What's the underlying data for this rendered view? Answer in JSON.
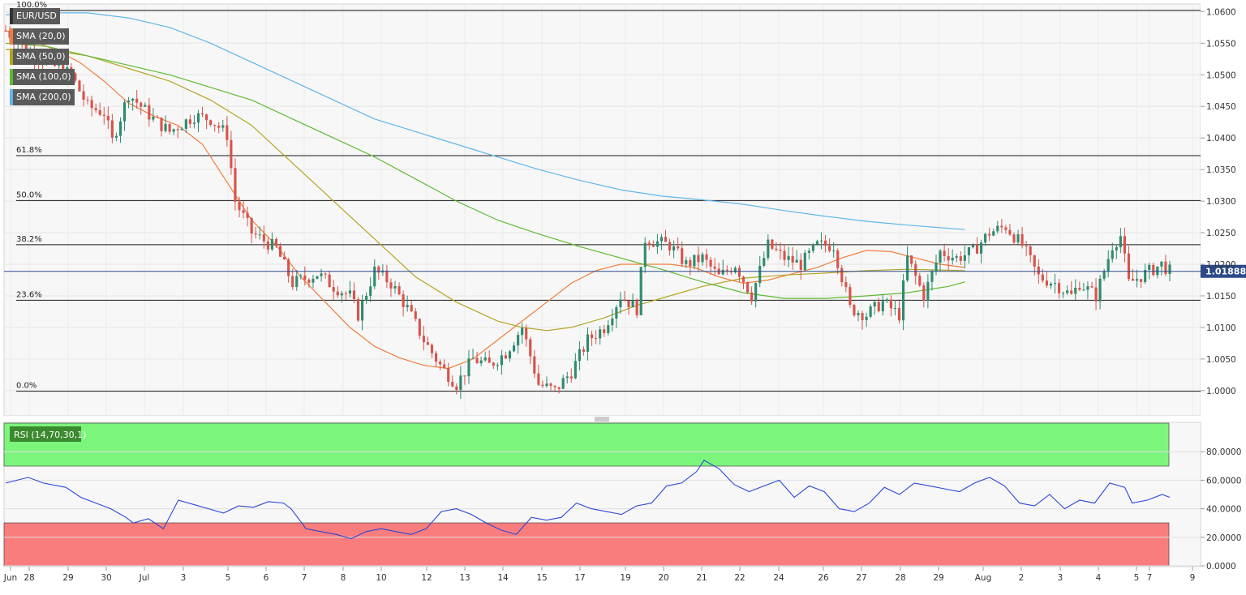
{
  "chart_data": [
    {
      "type": "candlestick",
      "symbol": "EUR/USD",
      "ylim": [
        0.996,
        1.0612
      ],
      "y_ticks": [
        "1.0600",
        "1.0550",
        "1.0500",
        "1.0450",
        "1.0400",
        "1.0350",
        "1.0300",
        "1.0250",
        "1.0200",
        "1.0150",
        "1.0100",
        "1.0050",
        "1.0000"
      ],
      "last_price": "1.01888",
      "last_value": 1.01888,
      "x_labels": [
        "Jun",
        "28",
        "29",
        "30",
        "Jul",
        "3",
        "5",
        "6",
        "7",
        "8",
        "10",
        "12",
        "13",
        "14",
        "15",
        "17",
        "19",
        "20",
        "21",
        "22",
        "24",
        "26",
        "27",
        "28",
        "29",
        "Aug",
        "2",
        "3",
        "4",
        "5",
        "7",
        "9"
      ],
      "fibonacci": [
        {
          "label": "100.0%",
          "value": 1.0602
        },
        {
          "label": "61.8%",
          "value": 1.0372
        },
        {
          "label": "50.0%",
          "value": 1.0301
        },
        {
          "label": "38.2%",
          "value": 1.0231
        },
        {
          "label": "23.6%",
          "value": 1.0143
        },
        {
          "label": "0.0%",
          "value": 0.9999
        }
      ],
      "legend": [
        {
          "label": "EUR/USD",
          "color": "#333333"
        },
        {
          "label": "SMA (20,0)",
          "color": "#ef7d3a"
        },
        {
          "label": "SMA (50,0)",
          "color": "#b3a524"
        },
        {
          "label": "SMA (100,0)",
          "color": "#5dbb2f"
        },
        {
          "label": "SMA (200,0)",
          "color": "#5fb6ea"
        }
      ],
      "series": [
        {
          "name": "SMA (20,0)",
          "color": "#ef7d3a",
          "points": [
            [
              0,
              1.057
            ],
            [
              6,
              1.0555
            ],
            [
              12,
              1.054
            ],
            [
              18,
              1.052
            ],
            [
              24,
              1.049
            ],
            [
              30,
              1.0455
            ],
            [
              36,
              1.0435
            ],
            [
              42,
              1.042
            ],
            [
              48,
              1.039
            ],
            [
              54,
              1.033
            ],
            [
              60,
              1.027
            ],
            [
              66,
              1.023
            ],
            [
              72,
              1.018
            ],
            [
              78,
              1.014
            ],
            [
              84,
              1.01
            ],
            [
              90,
              1.007
            ],
            [
              96,
              1.0052
            ],
            [
              102,
              1.004
            ],
            [
              108,
              1.0035
            ],
            [
              114,
              1.005
            ],
            [
              120,
              1.008
            ],
            [
              126,
              1.011
            ],
            [
              132,
              1.014
            ],
            [
              138,
              1.017
            ],
            [
              144,
              1.019
            ],
            [
              150,
              1.02
            ],
            [
              156,
              1.02
            ],
            [
              162,
              1.02
            ],
            [
              168,
              1.0195
            ],
            [
              174,
              1.018
            ],
            [
              180,
              1.017
            ],
            [
              186,
              1.0175
            ],
            [
              192,
              1.0185
            ],
            [
              198,
              1.0195
            ],
            [
              204,
              1.021
            ],
            [
              210,
              1.0222
            ],
            [
              216,
              1.022
            ],
            [
              222,
              1.021
            ],
            [
              228,
              1.02
            ],
            [
              234,
              1.0195
            ]
          ]
        },
        {
          "name": "SMA (50,0)",
          "color": "#b3a524",
          "points": [
            [
              0,
              1.054
            ],
            [
              10,
              1.054
            ],
            [
              20,
              1.053
            ],
            [
              30,
              1.051
            ],
            [
              40,
              1.049
            ],
            [
              50,
              1.046
            ],
            [
              60,
              1.042
            ],
            [
              70,
              1.036
            ],
            [
              80,
              1.03
            ],
            [
              90,
              1.024
            ],
            [
              100,
              1.018
            ],
            [
              110,
              1.014
            ],
            [
              120,
              1.011
            ],
            [
              126,
              1.01
            ],
            [
              132,
              1.0095
            ],
            [
              138,
              1.01
            ],
            [
              146,
              1.0115
            ],
            [
              154,
              1.0135
            ],
            [
              162,
              1.015
            ],
            [
              170,
              1.0165
            ],
            [
              180,
              1.0178
            ],
            [
              190,
              1.0183
            ],
            [
              200,
              1.0186
            ],
            [
              210,
              1.019
            ],
            [
              220,
              1.0192
            ],
            [
              234,
              1.019
            ]
          ]
        },
        {
          "name": "SMA (100,0)",
          "color": "#5dbb2f",
          "points": [
            [
              0,
              1.055
            ],
            [
              10,
              1.0545
            ],
            [
              20,
              1.053
            ],
            [
              30,
              1.0515
            ],
            [
              40,
              1.05
            ],
            [
              50,
              1.048
            ],
            [
              60,
              1.046
            ],
            [
              70,
              1.043
            ],
            [
              80,
              1.04
            ],
            [
              90,
              1.037
            ],
            [
              100,
              1.0335
            ],
            [
              110,
              1.03
            ],
            [
              120,
              1.027
            ],
            [
              130,
              1.0248
            ],
            [
              140,
              1.0228
            ],
            [
              150,
              1.021
            ],
            [
              160,
              1.0192
            ],
            [
              170,
              1.0172
            ],
            [
              180,
              1.0155
            ],
            [
              190,
              1.0146
            ],
            [
              200,
              1.0146
            ],
            [
              210,
              1.015
            ],
            [
              220,
              1.0155
            ],
            [
              230,
              1.0165
            ],
            [
              234,
              1.0172
            ]
          ]
        },
        {
          "name": "SMA (200,0)",
          "color": "#5fb6ea",
          "points": [
            [
              0,
              1.0595
            ],
            [
              10,
              1.0598
            ],
            [
              20,
              1.0598
            ],
            [
              30,
              1.059
            ],
            [
              40,
              1.0575
            ],
            [
              50,
              1.055
            ],
            [
              60,
              1.052
            ],
            [
              70,
              1.049
            ],
            [
              80,
              1.046
            ],
            [
              90,
              1.043
            ],
            [
              100,
              1.041
            ],
            [
              110,
              1.039
            ],
            [
              120,
              1.037
            ],
            [
              130,
              1.035
            ],
            [
              140,
              1.0333
            ],
            [
              150,
              1.0318
            ],
            [
              160,
              1.0308
            ],
            [
              170,
              1.0302
            ],
            [
              180,
              1.0295
            ],
            [
              190,
              1.0285
            ],
            [
              200,
              1.0276
            ],
            [
              210,
              1.0268
            ],
            [
              220,
              1.0262
            ],
            [
              234,
              1.0255
            ]
          ]
        }
      ],
      "close_path": [
        [
          0,
          1.057
        ],
        [
          6,
          1.0535
        ],
        [
          10,
          1.052
        ],
        [
          16,
          1.05
        ],
        [
          20,
          1.045
        ],
        [
          24,
          1.044
        ],
        [
          26,
          1.0395
        ],
        [
          30,
          1.047
        ],
        [
          36,
          1.043
        ],
        [
          40,
          1.041
        ],
        [
          46,
          1.0435
        ],
        [
          50,
          1.043
        ],
        [
          54,
          1.0405
        ],
        [
          56,
          1.03
        ],
        [
          60,
          1.025
        ],
        [
          66,
          1.0225
        ],
        [
          70,
          1.017
        ],
        [
          76,
          1.0185
        ],
        [
          80,
          1.0165
        ],
        [
          84,
          1.015
        ],
        [
          86,
          1.012
        ],
        [
          90,
          1.019
        ],
        [
          94,
          1.017
        ],
        [
          98,
          1.013
        ],
        [
          102,
          1.008
        ],
        [
          106,
          1.004
        ],
        [
          110,
          1.001
        ],
        [
          114,
          1.005
        ],
        [
          118,
          1.004
        ],
        [
          122,
          1.006
        ],
        [
          126,
          1.01
        ],
        [
          130,
          1.001
        ],
        [
          134,
          1.0
        ],
        [
          138,
          1.003
        ],
        [
          142,
          1.008
        ],
        [
          146,
          1.01
        ],
        [
          150,
          1.015
        ],
        [
          154,
          1.013
        ],
        [
          156,
          1.024
        ],
        [
          162,
          1.023
        ],
        [
          166,
          1.02
        ],
        [
          170,
          1.021
        ],
        [
          174,
          1.018
        ],
        [
          178,
          1.02
        ],
        [
          182,
          1.015
        ],
        [
          186,
          1.023
        ],
        [
          190,
          1.021
        ],
        [
          194,
          1.02
        ],
        [
          198,
          1.023
        ],
        [
          202,
          1.023
        ],
        [
          206,
          1.013
        ],
        [
          210,
          1.012
        ],
        [
          214,
          1.014
        ],
        [
          218,
          1.012
        ],
        [
          220,
          1.021
        ],
        [
          224,
          1.015
        ],
        [
          228,
          1.022
        ],
        [
          232,
          1.021
        ],
        [
          236,
          1.022
        ],
        [
          240,
          1.025
        ],
        [
          244,
          1.026
        ],
        [
          248,
          1.023
        ],
        [
          252,
          1.018
        ],
        [
          256,
          1.017
        ],
        [
          260,
          1.015
        ],
        [
          262,
          1.017
        ],
        [
          266,
          1.015
        ],
        [
          270,
          1.023
        ],
        [
          272,
          1.0245
        ],
        [
          274,
          1.017
        ],
        [
          278,
          1.0185
        ],
        [
          282,
          1.02
        ],
        [
          284,
          1.0189
        ]
      ]
    },
    {
      "type": "line",
      "label": "RSI (14,70,30,1)",
      "ylim": [
        0,
        100
      ],
      "y_ticks": [
        "80.0000",
        "60.0000",
        "40.0000",
        "20.0000",
        "0.0000"
      ],
      "overbought": 70,
      "oversold": 30,
      "series": [
        {
          "name": "RSI (14,70,30,1)",
          "color": "#2a46d6",
          "points": [
            [
              0,
              58
            ],
            [
              6,
              62
            ],
            [
              10,
              58
            ],
            [
              16,
              55
            ],
            [
              20,
              48
            ],
            [
              24,
              44
            ],
            [
              28,
              40
            ],
            [
              32,
              34
            ],
            [
              34,
              30
            ],
            [
              38,
              33
            ],
            [
              42,
              26
            ],
            [
              46,
              46
            ],
            [
              50,
              43
            ],
            [
              54,
              40
            ],
            [
              58,
              37
            ],
            [
              62,
              42
            ],
            [
              66,
              41
            ],
            [
              70,
              45
            ],
            [
              74,
              44
            ],
            [
              76,
              40
            ],
            [
              80,
              26
            ],
            [
              84,
              24
            ],
            [
              88,
              22
            ],
            [
              92,
              19
            ],
            [
              96,
              24
            ],
            [
              100,
              26
            ],
            [
              104,
              24
            ],
            [
              108,
              22
            ],
            [
              112,
              26
            ],
            [
              116,
              38
            ],
            [
              120,
              40
            ],
            [
              124,
              36
            ],
            [
              128,
              30
            ],
            [
              132,
              25
            ],
            [
              136,
              22
            ],
            [
              140,
              34
            ],
            [
              144,
              32
            ],
            [
              148,
              34
            ],
            [
              152,
              44
            ],
            [
              156,
              40
            ],
            [
              160,
              38
            ],
            [
              164,
              36
            ],
            [
              168,
              42
            ],
            [
              172,
              44
            ],
            [
              176,
              56
            ],
            [
              180,
              58
            ],
            [
              184,
              66
            ],
            [
              186,
              74
            ],
            [
              190,
              68
            ],
            [
              194,
              57
            ],
            [
              198,
              52
            ],
            [
              202,
              56
            ],
            [
              206,
              60
            ],
            [
              210,
              48
            ],
            [
              214,
              56
            ],
            [
              218,
              52
            ],
            [
              222,
              40
            ],
            [
              226,
              38
            ],
            [
              230,
              44
            ],
            [
              234,
              55
            ],
            [
              238,
              50
            ],
            [
              242,
              58
            ],
            [
              246,
              56
            ],
            [
              250,
              54
            ],
            [
              254,
              52
            ],
            [
              258,
              58
            ],
            [
              262,
              62
            ],
            [
              266,
              56
            ],
            [
              270,
              44
            ],
            [
              274,
              42
            ],
            [
              278,
              50
            ],
            [
              282,
              40
            ],
            [
              286,
              46
            ],
            [
              290,
              44
            ],
            [
              294,
              58
            ],
            [
              298,
              55
            ],
            [
              300,
              44
            ],
            [
              304,
              46
            ],
            [
              308,
              50
            ],
            [
              310,
              48
            ]
          ]
        }
      ]
    }
  ],
  "rsi": {
    "label": "RSI (14,70,30,1)"
  },
  "axis_symbol": "EUR/USD"
}
